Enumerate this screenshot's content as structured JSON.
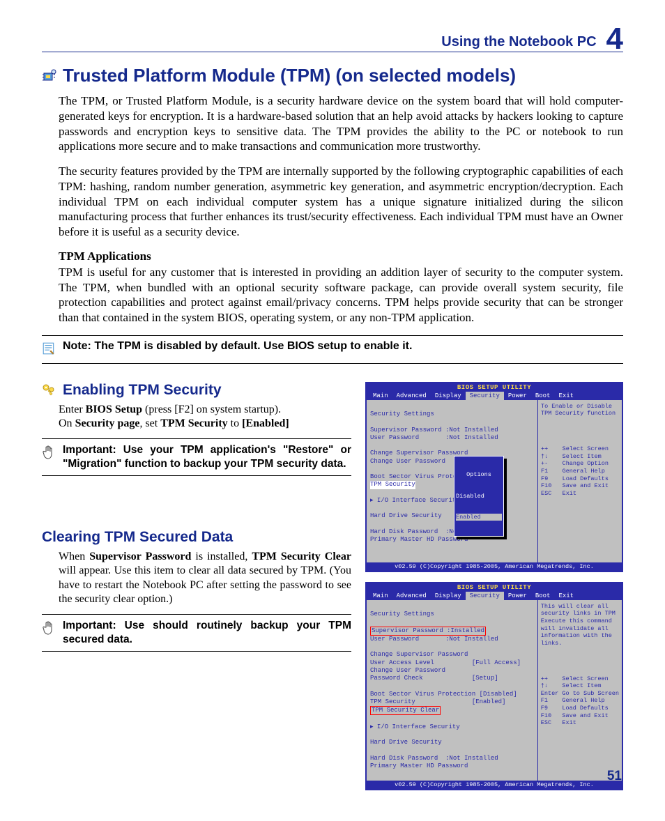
{
  "colors": {
    "accent": "#15298c",
    "bios_bg": "#c0c0c0",
    "bios_frame": "#2a2aa8",
    "bios_title_fg": "#fddb4a",
    "highlight_red": "#ff0000"
  },
  "header": {
    "section_title": "Using the Notebook PC",
    "chapter_number": "4"
  },
  "title": "Trusted Platform Module (TPM) (on selected models)",
  "para1": "The TPM, or Trusted Platform Module, is a security hardware device on the system board that will hold computer-generated keys for encryption. It is a hardware-based solution that an help avoid attacks by hackers looking to capture passwords and encryption keys to sensitive data. The TPM provides the ability to the PC or notebook to run applications more secure and to make transactions and communication more trustworthy.",
  "para2": "The security features provided by the TPM are internally supported by the following cryptographic capabilities of each TPM: hashing, random number generation, asymmetric key generation, and asymmetric encryption/decryption. Each individual TPM on each individual computer system has a unique signature initialized during the silicon manufacturing process that further enhances its trust/security effectiveness. Each individual TPM must have an Owner before it is useful as a security device.",
  "apps_heading": "TPM Applications",
  "para3": "TPM is useful for any customer that is interested in providing an addition layer of security to the computer system. The TPM, when bundled with an optional security software package, can provide overall system security, file protection capabilities and protect against email/privacy concerns. TPM helps provide security that can be stronger than that contained in the system BIOS, operating system, or any non-TPM application.",
  "note1": "Note: The TPM is disabled by default. Use BIOS setup to enable it.",
  "enable": {
    "title": "Enabling TPM Security",
    "line1a": "Enter ",
    "line1b": "BIOS Setup",
    "line1c": " (press [F2] on system startup).",
    "line2a": "On ",
    "line2b": "Security page",
    "line2c": ", set ",
    "line2d": "TPM Security",
    "line2e": " to ",
    "line2f": "[Enabled]",
    "important": "Important: Use your TPM application's \"Restore\" or \"Migration\" function to backup your TPM security data."
  },
  "clear": {
    "title": "Clearing TPM Secured Data",
    "body_a": "When ",
    "body_b": "Supervisor Password",
    "body_c": " is installed, ",
    "body_d": "TPM Security Clear",
    "body_e": " will appear. Use this item to clear all data secured by TPM. (You have to restart the Notebook PC after setting the password to see the security clear option.)",
    "important": "Important: Use should routinely backup your TPM secured data."
  },
  "bios_common": {
    "util_title": "BIOS SETUP UTILITY",
    "tabs": [
      "Main",
      "Advanced",
      "Display",
      "Security",
      "Power",
      "Boot",
      "Exit"
    ],
    "active_tab_index": 3,
    "footer": "v02.59 (C)Copyright 1985-2005, American Megatrends, Inc.",
    "keys": "++    Select Screen\n†↓    Select Item\n+-    Change Option\nF1    General Help\nF9    Load Defaults\nF10   Save and Exit\nESC   Exit",
    "keys2": "++    Select Screen\n†↓    Select Item\nEnter Go to Sub Screen\nF1    General Help\nF9    Load Defaults\nF10   Save and Exit\nESC   Exit"
  },
  "bios1": {
    "help": "To Enable or Disable\nTPM Security function",
    "heading": "Security Settings",
    "l1": "Supervisor Password :Not Installed",
    "l2": "User Password       :Not Installed",
    "l3": "Change Supervisor Password",
    "l4": "Change User Password",
    "l5": "Boot Sector Virus Protectio",
    "l6_label": "TPM Security",
    "l7": "▸ I/O Interface Security",
    "l8": "Hard Drive Security",
    "l9": "Hard Disk Password  :Not Installed",
    "l10": "Primary Master HD Password",
    "popup_title": "Options",
    "popup_opt1": "Disabled",
    "popup_opt2": "Enabled"
  },
  "bios2": {
    "help": "This will clear all\nsecurity links in TPM\nExecute this command\nwill invalidate all\ninformation with the\nlinks.",
    "heading": "Security Settings",
    "l1_label": "Supervisor Password",
    "l1_val": ":Installed",
    "l2": "User Password       :Not Installed",
    "l3": "Change Supervisor Password",
    "l4": "User Access Level          [Full Access]",
    "l5": "Change User Password",
    "l6": "Password Check             [Setup]",
    "l7": "Boot Sector Virus Protection [Disabled]",
    "l8": "TPM Security               [Enabled]",
    "l9_label": "TPM Security Clear",
    "l10": "▸ I/O Interface Security",
    "l11": "Hard Drive Security",
    "l12": "Hard Disk Password  :Not Installed",
    "l13": "Primary Master HD Password"
  },
  "page_number": "51"
}
